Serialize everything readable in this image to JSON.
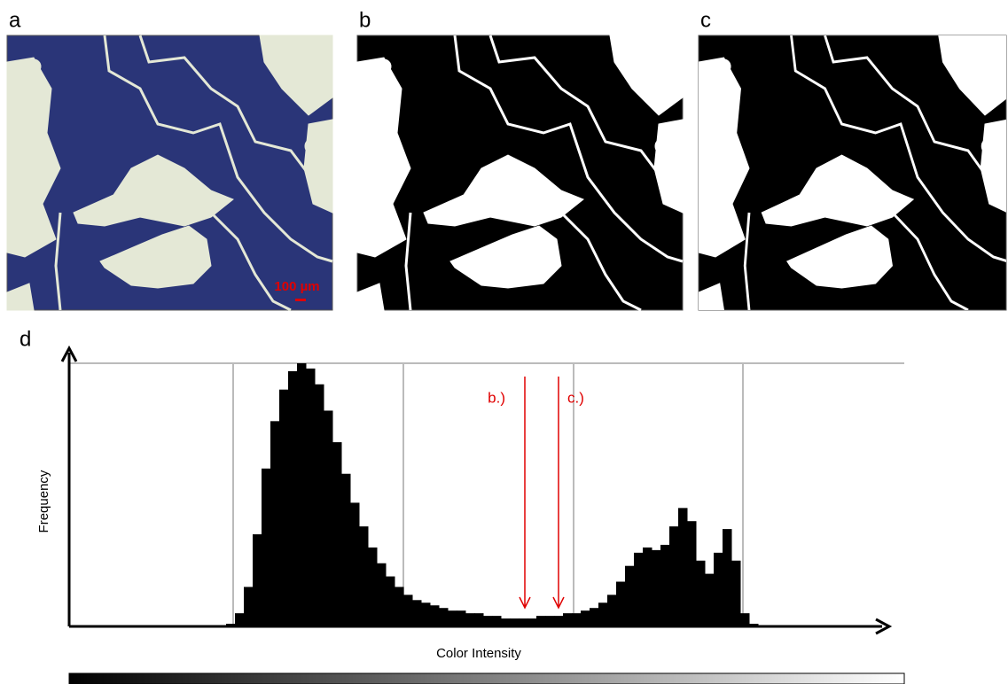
{
  "panel_labels": [
    "a",
    "b",
    "c",
    "d"
  ],
  "scale_bar": "100 µm",
  "chart_data": {
    "type": "bar",
    "x_label": "Color Intensity",
    "y_label": "Frequency",
    "values": [
      1,
      5,
      15,
      35,
      60,
      78,
      90,
      97,
      100,
      98,
      92,
      82,
      70,
      58,
      47,
      38,
      30,
      24,
      19,
      15,
      12,
      10,
      9,
      8,
      7,
      6,
      6,
      5,
      5,
      4,
      4,
      3,
      3,
      3,
      3,
      4,
      4,
      4,
      5,
      5,
      6,
      7,
      9,
      12,
      17,
      23,
      28,
      30,
      29,
      31,
      38,
      45,
      40,
      25,
      20,
      28,
      37,
      25,
      5,
      1
    ],
    "color": "#000000",
    "ylim": [
      0,
      100
    ],
    "grid": true,
    "annotations": [
      "b.)",
      "c.)"
    ]
  }
}
